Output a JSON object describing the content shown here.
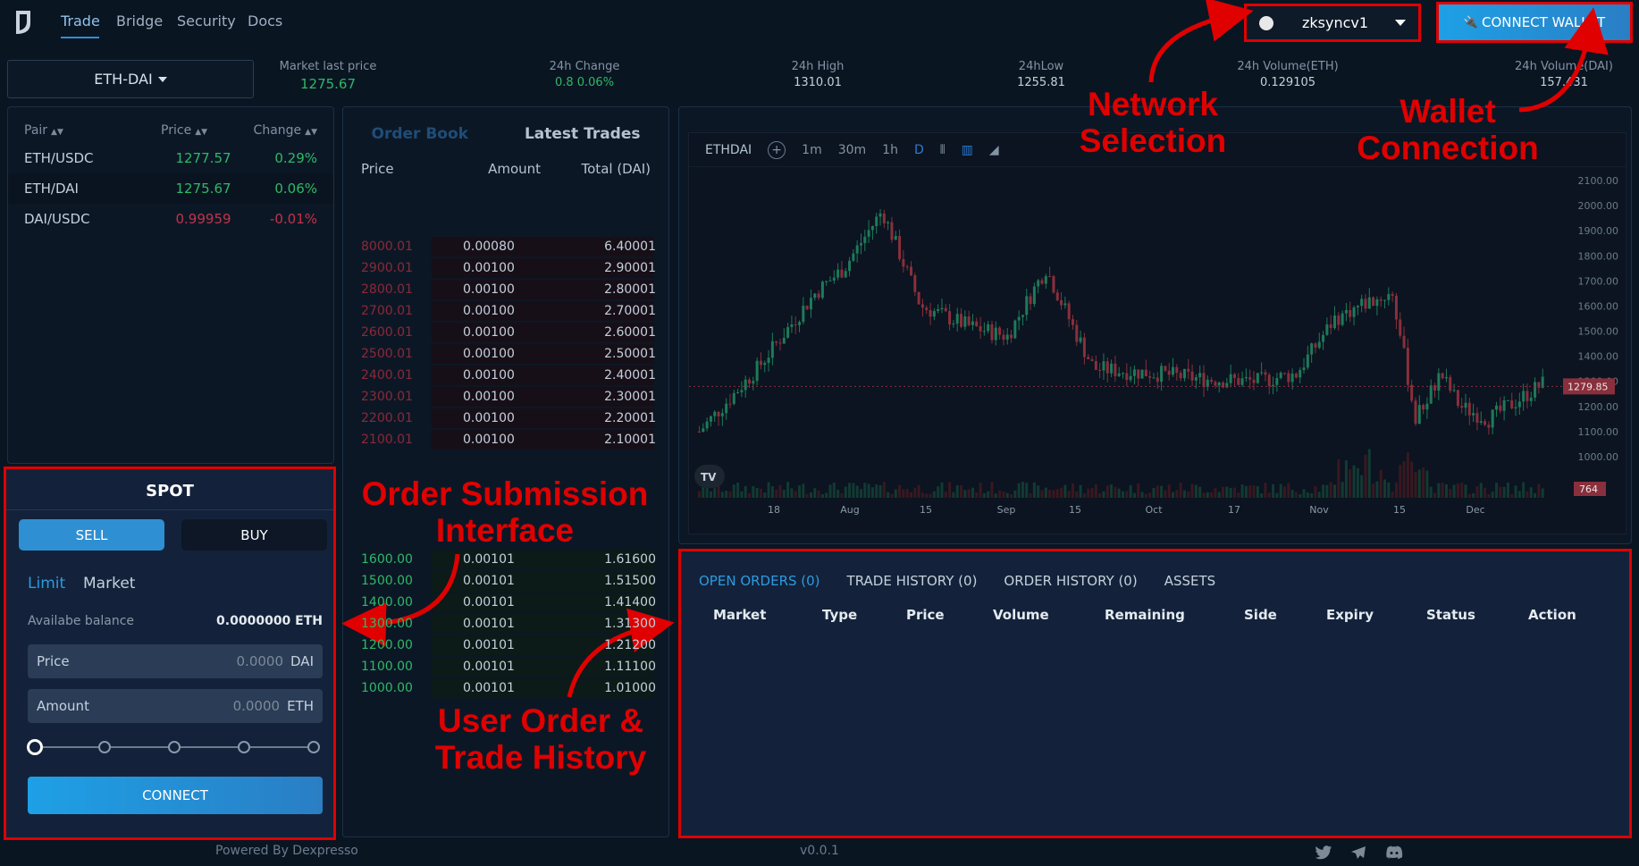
{
  "nav": {
    "items": [
      "Trade",
      "Bridge",
      "Security",
      "Docs"
    ]
  },
  "network": {
    "label": "zksyncv1"
  },
  "wallet": {
    "label": "CONNECT WALLET"
  },
  "pair_selector": {
    "label": "ETH-DAI"
  },
  "market": {
    "stats": [
      {
        "label": "Market last price",
        "value": "1275.67"
      },
      {
        "label": "24h Change",
        "value": "0.8 0.06%"
      },
      {
        "label": "24h High",
        "value": "1310.01"
      },
      {
        "label": "24hLow",
        "value": "1255.81"
      },
      {
        "label": "24h Volume(ETH)",
        "value": "0.129105"
      },
      {
        "label": "24h Volume(DAI)",
        "value": "157.431"
      }
    ]
  },
  "pairs": {
    "headers": [
      "Pair",
      "Price",
      "Change"
    ],
    "rows": [
      {
        "pair": "ETH/USDC",
        "price": "1277.57",
        "change": "0.29%"
      },
      {
        "pair": "ETH/DAI",
        "price": "1275.67",
        "change": "0.06%"
      },
      {
        "pair": "DAI/USDC",
        "price": "0.99959",
        "change": "-0.01%"
      }
    ]
  },
  "orderbook": {
    "tabs": [
      "Order Book",
      "Latest Trades"
    ],
    "headers": [
      "Price",
      "Amount",
      "Total (DAI)"
    ],
    "asks": [
      {
        "price": "8000.01",
        "amount": "0.00080",
        "total": "6.40001"
      },
      {
        "price": "2900.01",
        "amount": "0.00100",
        "total": "2.90001"
      },
      {
        "price": "2800.01",
        "amount": "0.00100",
        "total": "2.80001"
      },
      {
        "price": "2700.01",
        "amount": "0.00100",
        "total": "2.70001"
      },
      {
        "price": "2600.01",
        "amount": "0.00100",
        "total": "2.60001"
      },
      {
        "price": "2500.01",
        "amount": "0.00100",
        "total": "2.50001"
      },
      {
        "price": "2400.01",
        "amount": "0.00100",
        "total": "2.40001"
      },
      {
        "price": "2300.01",
        "amount": "0.00100",
        "total": "2.30001"
      },
      {
        "price": "2200.01",
        "amount": "0.00100",
        "total": "2.20001"
      },
      {
        "price": "2100.01",
        "amount": "0.00100",
        "total": "2.10001"
      }
    ],
    "bids": [
      {
        "price": "1600.00",
        "amount": "0.00101",
        "total": "1.61600"
      },
      {
        "price": "1500.00",
        "amount": "0.00101",
        "total": "1.51500"
      },
      {
        "price": "1400.00",
        "amount": "0.00101",
        "total": "1.41400"
      },
      {
        "price": "1300.00",
        "amount": "0.00101",
        "total": "1.31300"
      },
      {
        "price": "1200.00",
        "amount": "0.00101",
        "total": "1.21200"
      },
      {
        "price": "1100.00",
        "amount": "0.00101",
        "total": "1.11100"
      },
      {
        "price": "1000.00",
        "amount": "0.00101",
        "total": "1.01000"
      }
    ]
  },
  "chart": {
    "symbol": "ETHDAI",
    "intervals": [
      "1m",
      "30m",
      "1h",
      "D"
    ],
    "price_ticks": [
      "2100.00",
      "2000.00",
      "1900.00",
      "1800.00",
      "1700.00",
      "1600.00",
      "1500.00",
      "1400.00",
      "1300.00",
      "1200.00",
      "1100.00",
      "1000.00"
    ],
    "current_price": "1279.85",
    "volume_label": "764",
    "x_ticks": [
      "18",
      "Aug",
      "15",
      "Sep",
      "15",
      "Oct",
      "17",
      "Nov",
      "15",
      "Dec"
    ],
    "watermark": "TV"
  },
  "orders": {
    "tabs": [
      "OPEN ORDERS (0)",
      "TRADE HISTORY (0)",
      "ORDER HISTORY (0)",
      "ASSETS"
    ],
    "columns": [
      "Market",
      "Type",
      "Price",
      "Volume",
      "Remaining",
      "Side",
      "Expiry",
      "Status",
      "Action"
    ]
  },
  "spot": {
    "title": "SPOT",
    "sell": "SELL",
    "buy": "BUY",
    "limit": "Limit",
    "market": "Market",
    "balance_label": "Availabe balance",
    "balance_value": "0.0000000 ETH",
    "price_label": "Price",
    "price_value": "0.0000",
    "price_unit": "DAI",
    "amount_label": "Amount",
    "amount_value": "0.0000",
    "amount_unit": "ETH",
    "slider_value_percent": 0,
    "connect": "CONNECT"
  },
  "footer": {
    "powered": "Powered By Dexpresso",
    "version": "v0.0.1"
  },
  "annotations": {
    "network": "Network\nSelection",
    "wallet": "Wallet\nConnection",
    "order_submission": "Order Submission\nInterface",
    "history": "User Order &\nTrade History"
  },
  "colors": {
    "accent": "#2c9ae0",
    "up": "#2fb866",
    "down": "#c0334a",
    "annotation": "#e00000"
  }
}
